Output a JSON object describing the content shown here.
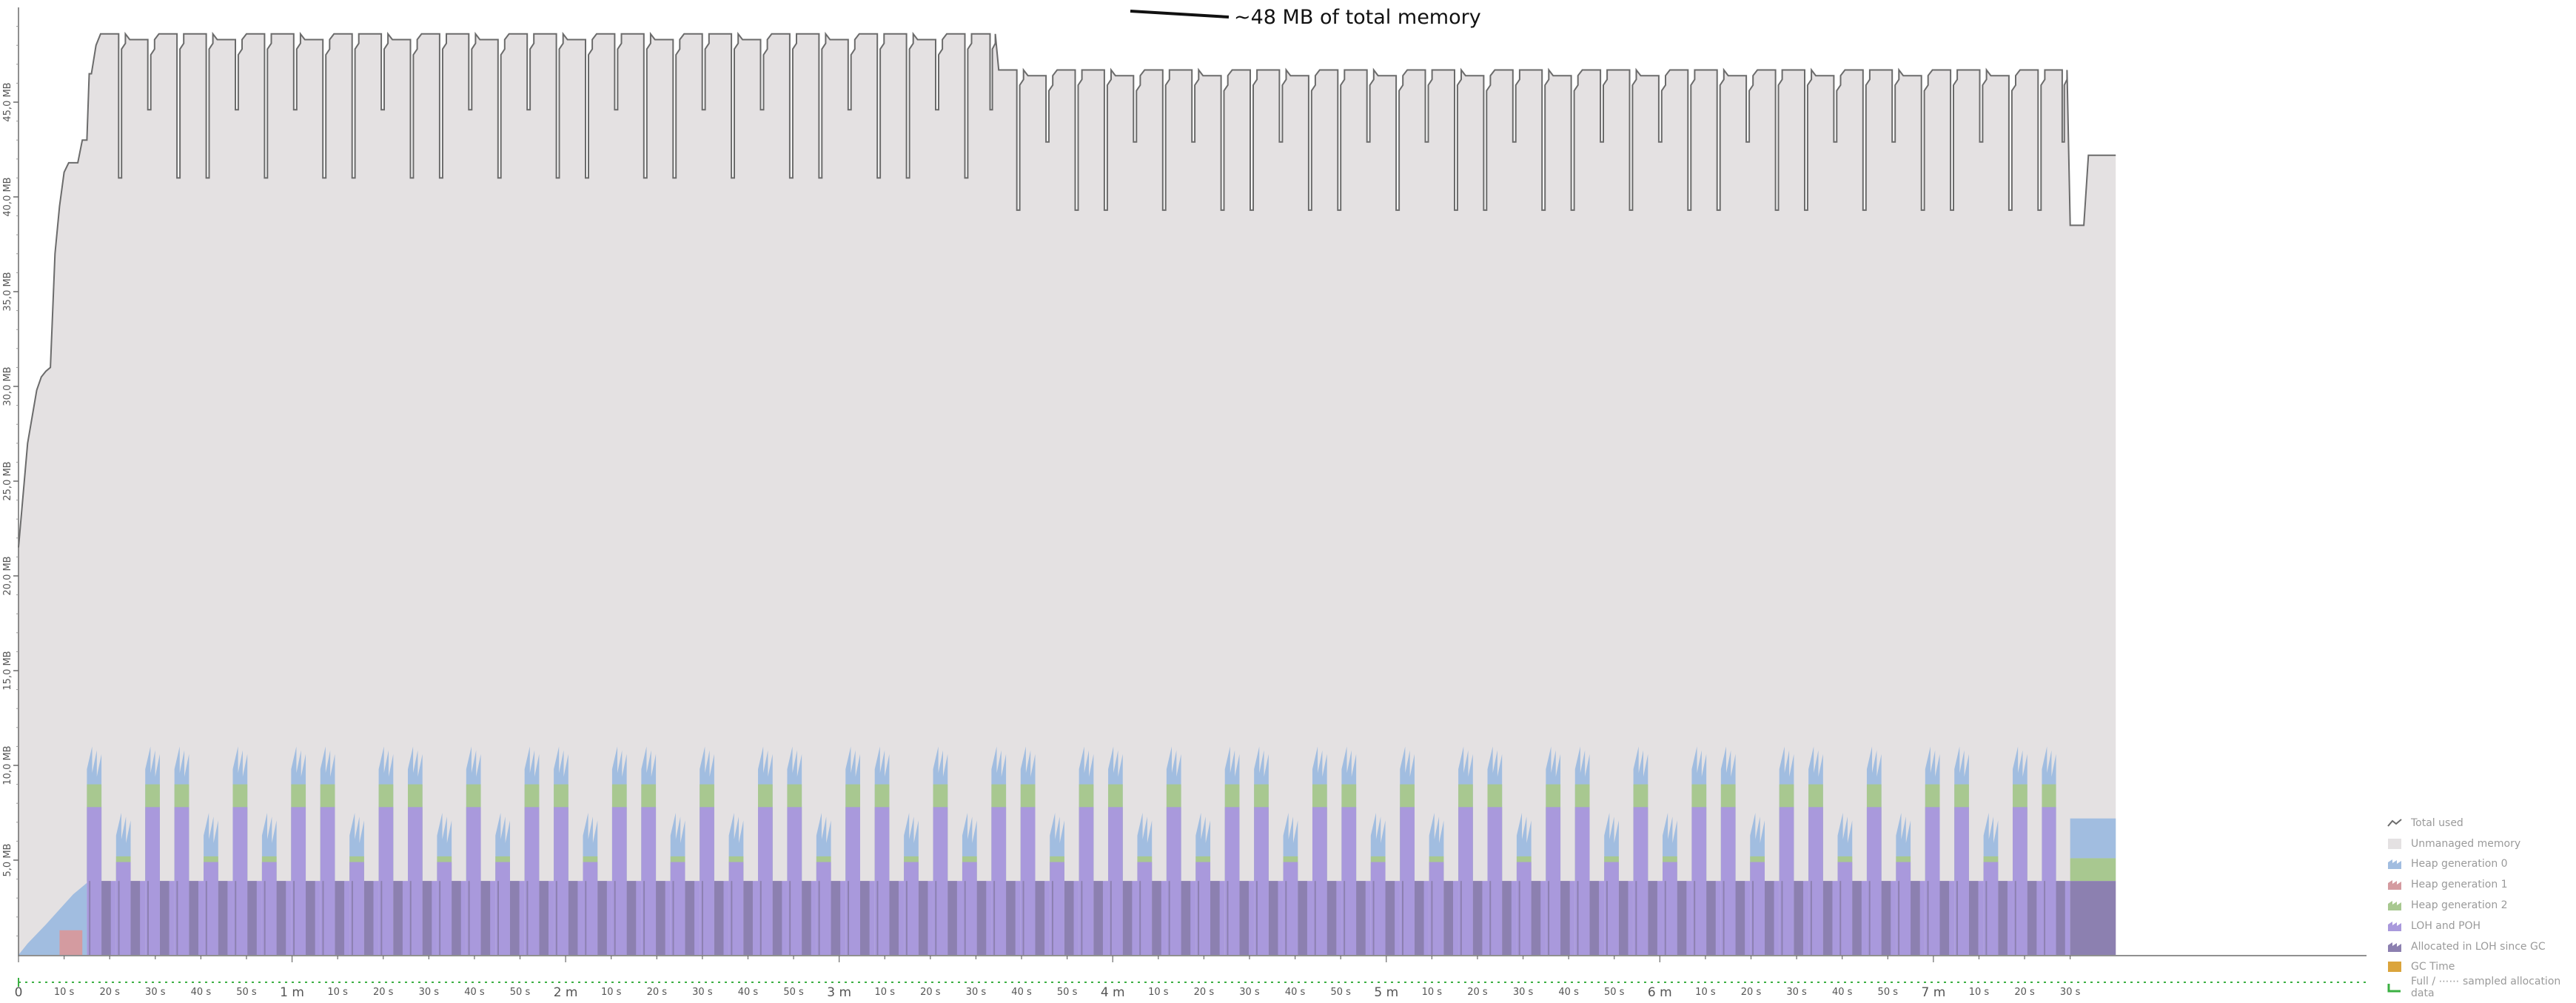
{
  "chart_data": {
    "type": "area",
    "title": "",
    "xlabel": "",
    "ylabel": "",
    "ylim": [
      0,
      50
    ],
    "xlim_seconds": [
      0,
      515
    ],
    "y_ticks": [
      "5,0 MB",
      "10,0 MB",
      "15,0 MB",
      "20,0 MB",
      "25,0 MB",
      "30,0 MB",
      "35,0 MB",
      "40,0 MB",
      "45,0 MB"
    ],
    "y_tick_values": [
      5,
      10,
      15,
      20,
      25,
      30,
      35,
      40,
      45
    ],
    "x_ticks": [
      {
        "t": 0,
        "label": "0",
        "major": true
      },
      {
        "t": 10,
        "label": "10 s"
      },
      {
        "t": 20,
        "label": "20 s"
      },
      {
        "t": 30,
        "label": "30 s"
      },
      {
        "t": 40,
        "label": "40 s"
      },
      {
        "t": 50,
        "label": "50 s"
      },
      {
        "t": 60,
        "label": "1 m",
        "major": true
      },
      {
        "t": 70,
        "label": "10 s"
      },
      {
        "t": 80,
        "label": "20 s"
      },
      {
        "t": 90,
        "label": "30 s"
      },
      {
        "t": 100,
        "label": "40 s"
      },
      {
        "t": 110,
        "label": "50 s"
      },
      {
        "t": 120,
        "label": "2 m",
        "major": true
      },
      {
        "t": 130,
        "label": "10 s"
      },
      {
        "t": 140,
        "label": "20 s"
      },
      {
        "t": 150,
        "label": "30 s"
      },
      {
        "t": 160,
        "label": "40 s"
      },
      {
        "t": 170,
        "label": "50 s"
      },
      {
        "t": 180,
        "label": "3 m",
        "major": true
      },
      {
        "t": 190,
        "label": "10 s"
      },
      {
        "t": 200,
        "label": "20 s"
      },
      {
        "t": 210,
        "label": "30 s"
      },
      {
        "t": 220,
        "label": "40 s"
      },
      {
        "t": 230,
        "label": "50 s"
      },
      {
        "t": 240,
        "label": "4 m",
        "major": true
      },
      {
        "t": 250,
        "label": "10 s"
      },
      {
        "t": 260,
        "label": "20 s"
      },
      {
        "t": 270,
        "label": "30 s"
      },
      {
        "t": 280,
        "label": "40 s"
      },
      {
        "t": 290,
        "label": "50 s"
      },
      {
        "t": 300,
        "label": "5 m",
        "major": true
      },
      {
        "t": 310,
        "label": "10 s"
      },
      {
        "t": 320,
        "label": "20 s"
      },
      {
        "t": 330,
        "label": "30 s"
      },
      {
        "t": 340,
        "label": "40 s"
      },
      {
        "t": 350,
        "label": "50 s"
      },
      {
        "t": 360,
        "label": "6 m",
        "major": true
      },
      {
        "t": 370,
        "label": "10 s"
      },
      {
        "t": 380,
        "label": "20 s"
      },
      {
        "t": 390,
        "label": "30 s"
      },
      {
        "t": 400,
        "label": "40 s"
      },
      {
        "t": 410,
        "label": "50 s"
      },
      {
        "t": 420,
        "label": "7 m",
        "major": true
      },
      {
        "t": 430,
        "label": "10 s"
      },
      {
        "t": 440,
        "label": "20 s"
      },
      {
        "t": 450,
        "label": "30 s"
      }
    ],
    "annotation": {
      "text": "~48 MB of total memory",
      "t": 215,
      "value": 48.4
    },
    "total_used": {
      "startup_t": [
        0,
        2,
        4,
        5,
        6,
        7,
        8,
        9,
        10,
        11,
        12,
        13,
        14,
        15,
        15.5,
        16,
        17
      ],
      "startup_mb": [
        21.5,
        27.0,
        29.8,
        30.5,
        30.8,
        31.0,
        37.0,
        39.5,
        41.3,
        41.8,
        41.8,
        41.8,
        43.0,
        43.0,
        46.5,
        46.5,
        48.0
      ],
      "phase1_range_t": [
        18,
        215
      ],
      "phase1_high_mb": 48.6,
      "phase1_low_mb": 41.0,
      "phase2_range_t": [
        215,
        450
      ],
      "phase2_high_mb": 46.7,
      "phase2_low_mb": 39.3,
      "tail_t": [
        450,
        453,
        454,
        460
      ],
      "tail_mb": [
        38.5,
        38.5,
        42.2,
        42.2
      ],
      "cycle_seconds": 6.4,
      "cycle_pattern": [
        1,
        0,
        1,
        1,
        0,
        1,
        0,
        1
      ]
    },
    "unmanaged_memory": {
      "note_mb_range": [
        7.0,
        48.6
      ]
    },
    "heap_gen0": {
      "peak_mb": 11.0,
      "mid_mb": 7.5,
      "tail_mb": 7.2
    },
    "heap_gen1": {
      "t_range": [
        9,
        14
      ],
      "mb": 1.3
    },
    "heap_gen2": {
      "peak_mb": 9.0,
      "mid_mb": 5.2
    },
    "loh_and_poh": {
      "peak_mb": 7.8,
      "base_mb": 3.9
    },
    "allocated_in_loh": {
      "mb": 3.9
    },
    "legend": [
      {
        "key": "total",
        "label": "Total used",
        "color": "#6b6b6b"
      },
      {
        "key": "unmanaged",
        "label": "Unmanaged memory",
        "color": "#e4e1e2"
      },
      {
        "key": "gen0",
        "label": "Heap generation 0",
        "color": "#a1bde0"
      },
      {
        "key": "gen1",
        "label": "Heap generation 1",
        "color": "#d49ba0"
      },
      {
        "key": "gen2",
        "label": "Heap generation 2",
        "color": "#a8c890"
      },
      {
        "key": "loh",
        "label": "LOH and POH",
        "color": "#a999dc"
      },
      {
        "key": "lohalloc",
        "label": "Allocated in LOH since GC",
        "color": "#8c80b0"
      },
      {
        "key": "gc",
        "label": "GC Time",
        "color": "#dba43c"
      },
      {
        "key": "full",
        "label": "Full / ⋯⋯ sampled allocation data",
        "color": "#3cb043"
      }
    ],
    "colors": {
      "total_line": "#6b6b6b",
      "unmanaged": "#e4e1e2",
      "gen0": "#a1bde0",
      "gen1": "#d49ba0",
      "gen2": "#a8c890",
      "loh": "#a999dc",
      "lohalloc": "#8c80b0",
      "axis": "#6b6b6b",
      "sampling": "#3cb043",
      "annotation": "#111111"
    }
  }
}
